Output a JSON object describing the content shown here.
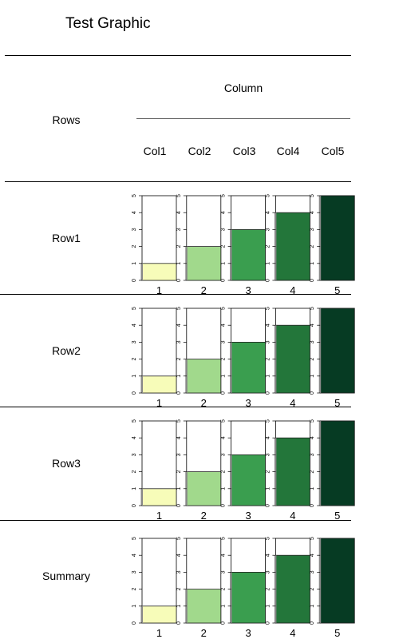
{
  "title": "Test Graphic",
  "column_group_label": "Column",
  "rows_header": "Rows",
  "columns": [
    "Col1",
    "Col2",
    "Col3",
    "Col4",
    "Col5"
  ],
  "rows": [
    "Row1",
    "Row2",
    "Row3",
    "Summary"
  ],
  "chart_data": [
    {
      "type": "bar",
      "panel": "Row1",
      "categories": [
        "1",
        "2",
        "3",
        "4",
        "5"
      ],
      "values": [
        1,
        2,
        3,
        4,
        5
      ],
      "ylim": [
        0,
        5
      ],
      "yticks": [
        "0",
        "1",
        "2",
        "3",
        "4",
        "5"
      ],
      "colors": [
        "#f7fcb9",
        "#a1d98c",
        "#3a9e4f",
        "#23763a",
        "#063b23"
      ]
    },
    {
      "type": "bar",
      "panel": "Row2",
      "categories": [
        "1",
        "2",
        "3",
        "4",
        "5"
      ],
      "values": [
        1,
        2,
        3,
        4,
        5
      ],
      "ylim": [
        0,
        5
      ],
      "yticks": [
        "0",
        "1",
        "2",
        "3",
        "4",
        "5"
      ],
      "colors": [
        "#f7fcb9",
        "#a1d98c",
        "#3a9e4f",
        "#23763a",
        "#063b23"
      ]
    },
    {
      "type": "bar",
      "panel": "Row3",
      "categories": [
        "1",
        "2",
        "3",
        "4",
        "5"
      ],
      "values": [
        1,
        2,
        3,
        4,
        5
      ],
      "ylim": [
        0,
        5
      ],
      "yticks": [
        "0",
        "1",
        "2",
        "3",
        "4",
        "5"
      ],
      "colors": [
        "#f7fcb9",
        "#a1d98c",
        "#3a9e4f",
        "#23763a",
        "#063b23"
      ]
    },
    {
      "type": "bar",
      "panel": "Summary",
      "categories": [
        "1",
        "2",
        "3",
        "4",
        "5"
      ],
      "values": [
        1,
        2,
        3,
        4,
        5
      ],
      "ylim": [
        0,
        5
      ],
      "yticks": [
        "0",
        "1",
        "2",
        "3",
        "4",
        "5"
      ],
      "colors": [
        "#f7fcb9",
        "#a1d98c",
        "#3a9e4f",
        "#23763a",
        "#063b23"
      ]
    }
  ]
}
